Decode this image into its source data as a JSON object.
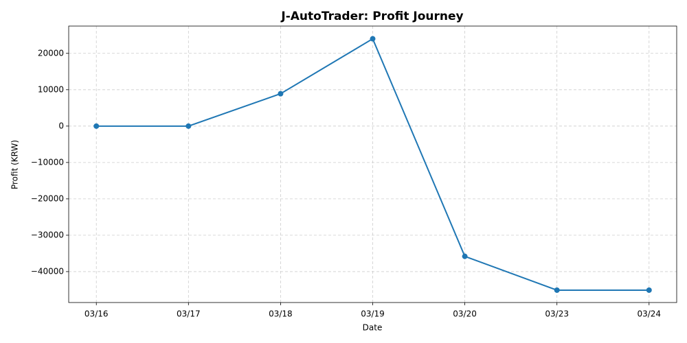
{
  "chart_data": {
    "type": "line",
    "title": "J-AutoTrader: Profit Journey",
    "x_label": "Date",
    "y_label": "Profit (KRW)",
    "categories": [
      "03/16",
      "03/17",
      "03/18",
      "03/19",
      "03/20",
      "03/23",
      "03/24"
    ],
    "series": [
      {
        "name": "Profit",
        "color": "#1f77b4",
        "values": [
          0,
          0,
          8900,
          24000,
          -35800,
          -45100,
          -45100
        ]
      }
    ],
    "ylim": [
      -48500,
      27500
    ],
    "yticks": [
      {
        "value": -40000,
        "label": "−40000"
      },
      {
        "value": -30000,
        "label": "−30000"
      },
      {
        "value": -20000,
        "label": "−20000"
      },
      {
        "value": -10000,
        "label": "−10000"
      },
      0,
      10000,
      20000
    ],
    "grid": true
  }
}
